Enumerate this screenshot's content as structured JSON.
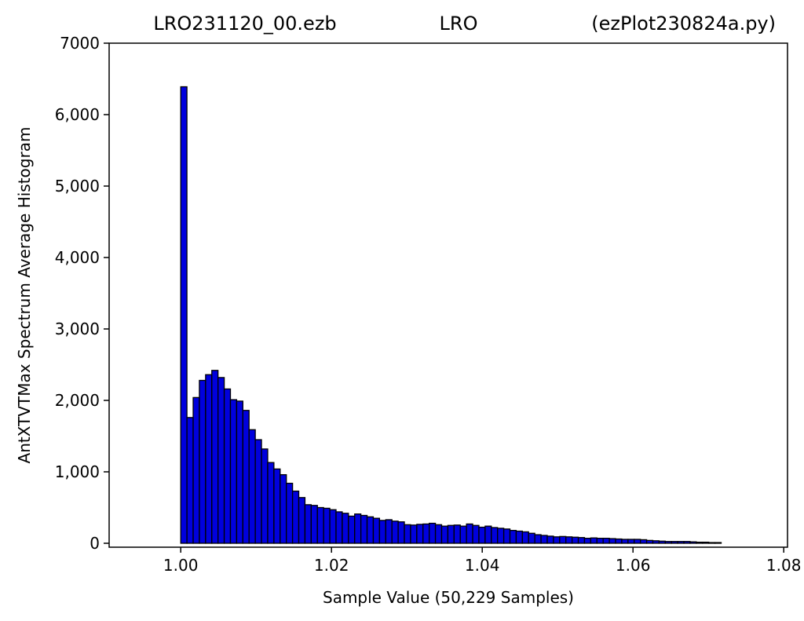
{
  "chart_data": {
    "type": "bar",
    "title_left": "LRO231120_00.ezb",
    "title_center": "LRO",
    "title_right": "(ezPlot230824a.py)",
    "xlabel": "Sample Value (50,229 Samples)",
    "ylabel": "AntXTVTMax Spectrum Average Histogram",
    "xlim": [
      0.9905,
      1.0805
    ],
    "ylim": [
      -55,
      7000
    ],
    "x_ticks": [
      {
        "value": 1.0,
        "label": "1.00"
      },
      {
        "value": 1.02,
        "label": "1.02"
      },
      {
        "value": 1.04,
        "label": "1.04"
      },
      {
        "value": 1.06,
        "label": "1.06"
      },
      {
        "value": 1.08,
        "label": "1.08"
      }
    ],
    "y_ticks": [
      {
        "value": 0,
        "label": "0"
      },
      {
        "value": 1000,
        "label": "1,000"
      },
      {
        "value": 2000,
        "label": "2,000"
      },
      {
        "value": 3000,
        "label": "3,000"
      },
      {
        "value": 4000,
        "label": "4,000"
      },
      {
        "value": 5000,
        "label": "5,000"
      },
      {
        "value": 6000,
        "label": "6,000"
      },
      {
        "value": 7000,
        "label": "7000"
      }
    ],
    "bin_start": 1.0,
    "bin_end": 1.0717,
    "bar_color": "#0000dd",
    "edge_color": "#000000",
    "values": [
      6390,
      1760,
      2040,
      2280,
      2360,
      2420,
      2320,
      2160,
      2010,
      1990,
      1860,
      1590,
      1450,
      1320,
      1130,
      1040,
      960,
      840,
      730,
      640,
      540,
      530,
      500,
      490,
      470,
      440,
      420,
      380,
      410,
      390,
      370,
      350,
      320,
      330,
      310,
      300,
      260,
      255,
      265,
      270,
      280,
      260,
      240,
      250,
      255,
      240,
      270,
      250,
      225,
      240,
      220,
      210,
      200,
      180,
      170,
      160,
      140,
      120,
      110,
      100,
      90,
      95,
      90,
      85,
      80,
      70,
      75,
      70,
      70,
      65,
      60,
      55,
      55,
      55,
      50,
      40,
      35,
      30,
      25,
      25,
      25,
      25,
      20,
      15,
      15,
      10,
      10
    ]
  }
}
